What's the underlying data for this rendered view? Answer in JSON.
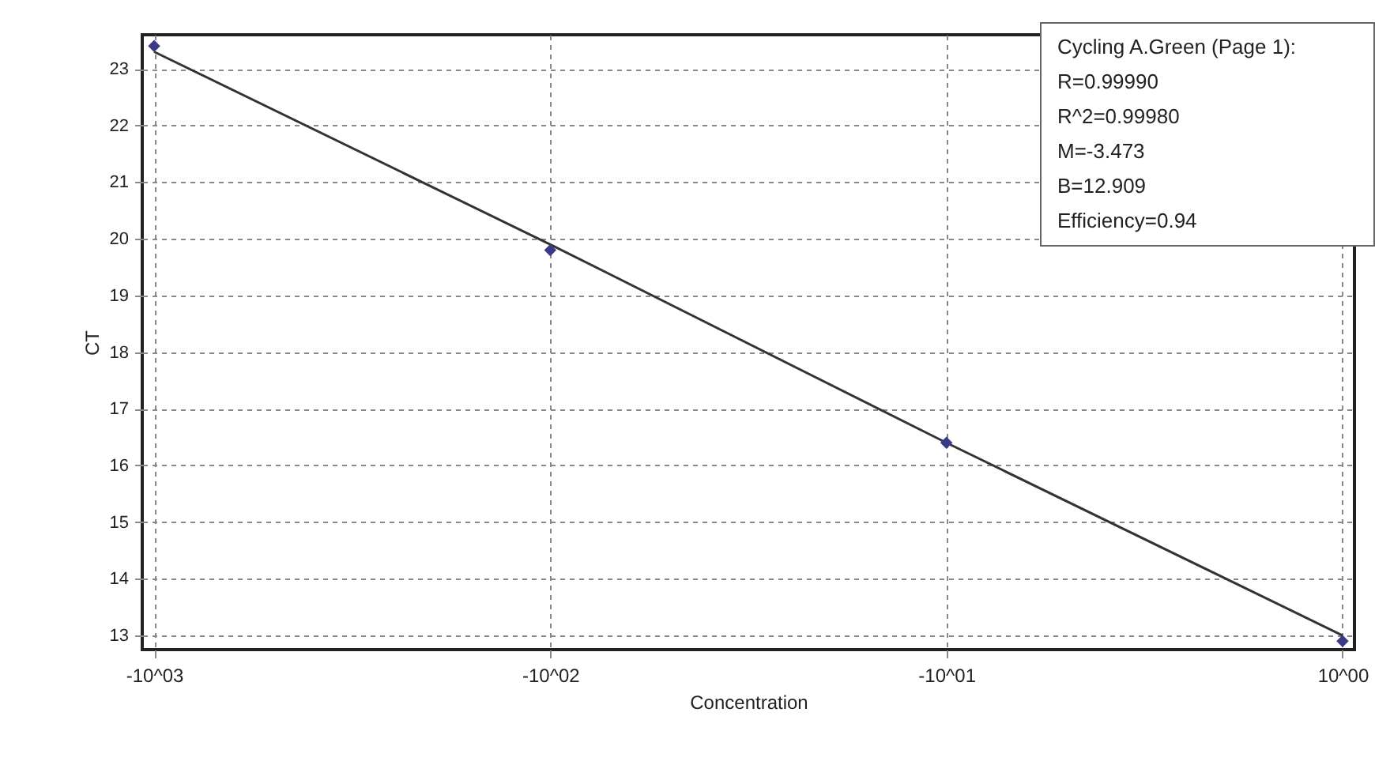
{
  "chart_data": {
    "type": "scatter",
    "xlabel": "Concentration",
    "ylabel": "CT",
    "categories": [
      "-10^03",
      "-10^02",
      "-10^01",
      "10^00"
    ],
    "ylim": [
      12.75,
      23.6
    ],
    "yticks": [
      13,
      14,
      15,
      16,
      17,
      18,
      19,
      20,
      21,
      22,
      23
    ],
    "grid": true,
    "series": [
      {
        "type": "line",
        "color": "#333333",
        "values": [
          23.3,
          19.9,
          16.4,
          13.0
        ]
      },
      {
        "color": "#3a3a8a",
        "marker": "diamond",
        "values": [
          23.4,
          19.8,
          16.4,
          12.9
        ]
      }
    ],
    "annotations": [
      "Cycling A.Green (Page 1):",
      "R=0.99990",
      "R^2=0.99980",
      "M=-3.473",
      "B=12.909",
      "Efficiency=0.94"
    ]
  }
}
